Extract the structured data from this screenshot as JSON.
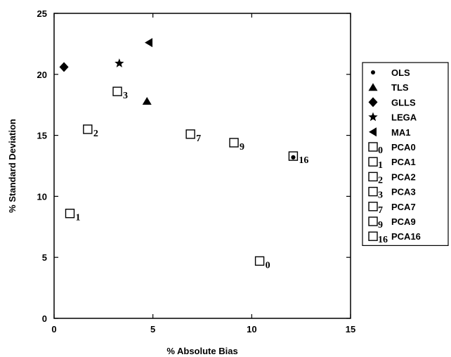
{
  "chart_data": {
    "type": "scatter",
    "title": "",
    "xlabel": "% Absolute Bias",
    "ylabel": "% Standard Deviation",
    "xlim": [
      0,
      15
    ],
    "ylim": [
      0,
      25
    ],
    "xticks": [
      "0",
      "5",
      "10",
      "15"
    ],
    "yticks": [
      "0",
      "5",
      "10",
      "15",
      "20",
      "25"
    ],
    "grid": false,
    "legend_position": "right",
    "series": [
      {
        "name": "OLS",
        "marker": "circle",
        "marker_label": "",
        "x": 12.1,
        "y": 13.2
      },
      {
        "name": "TLS",
        "marker": "triangle-up",
        "marker_label": "",
        "x": 4.7,
        "y": 17.8
      },
      {
        "name": "GLLS",
        "marker": "diamond",
        "marker_label": "",
        "x": 0.5,
        "y": 20.6
      },
      {
        "name": "LEGA",
        "marker": "star",
        "marker_label": "",
        "x": 3.3,
        "y": 20.9
      },
      {
        "name": "MA1",
        "marker": "triangle-left",
        "marker_label": "",
        "x": 4.8,
        "y": 22.6
      },
      {
        "name": "PCA0",
        "marker": "square-open",
        "marker_label": "0",
        "x": 10.4,
        "y": 4.7
      },
      {
        "name": "PCA1",
        "marker": "square-open",
        "marker_label": "1",
        "x": 0.8,
        "y": 8.6
      },
      {
        "name": "PCA2",
        "marker": "square-open",
        "marker_label": "2",
        "x": 1.7,
        "y": 15.5
      },
      {
        "name": "PCA3",
        "marker": "square-open",
        "marker_label": "3",
        "x": 3.2,
        "y": 18.6
      },
      {
        "name": "PCA7",
        "marker": "square-open",
        "marker_label": "7",
        "x": 6.9,
        "y": 15.1
      },
      {
        "name": "PCA9",
        "marker": "square-open",
        "marker_label": "9",
        "x": 9.1,
        "y": 14.4
      },
      {
        "name": "PCA16",
        "marker": "square-open",
        "marker_label": "16",
        "x": 12.1,
        "y": 13.3
      }
    ]
  }
}
